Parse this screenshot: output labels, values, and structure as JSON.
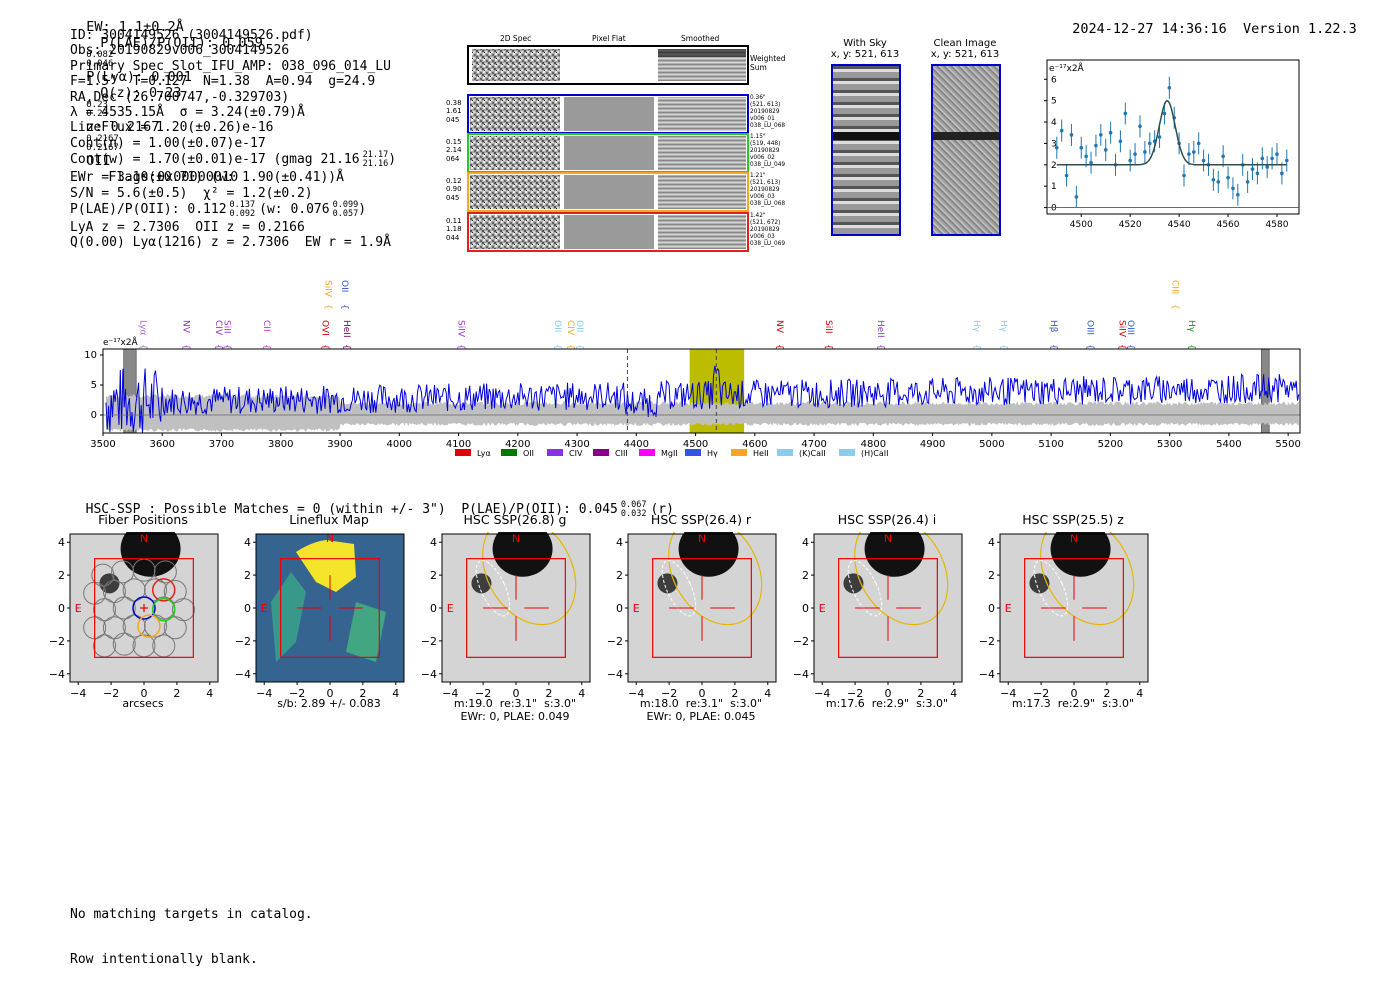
{
  "header": {
    "ew": "EW: 1.1±0.2Å",
    "plae_oii": "P(LAE)/P(OII): 0.059",
    "plae_hi": "0.082",
    "plae_lo": "0.046",
    "plya": "P(Lyα): 0.001",
    "qz": "Q(z): 0.23",
    "qz_hi": "0.23",
    "qz_lo": "0.23",
    "z": "z: 0.2167",
    "z_hi": "0.2167",
    "z_lo": "0.2167",
    "z_line": "OII",
    "flags": "Flags:0x00000010",
    "timestamp": "2024-12-27 14:36:16",
    "version": "Version 1.22.3"
  },
  "info": {
    "lines": [
      "ID: 3004149526 (3004149526.pdf)",
      "Obs: 20190829v006_3004149526",
      "Primary Spec_Slot_IFU_AMP: 038_096_014_LU",
      "F=1.5\"  T=0.127  N=1.38  A=0.94  g=24.9",
      "RA,Dec (26.700747,-0.329703)",
      "λ = 4535.15Å  σ = 3.24(±0.79)Å",
      "LineFlux = 1.20(±0.26)e-16",
      "Cont(n) = 1.00(±0.07)e-17",
      "Cont(w) = 1.70(±0.01)e-17 (gmag 21.16",
      "EWr = 3.10(±0.71) (w: 1.90(±0.41))Å",
      "S/N = 5.6(±0.5)  χ² = 1.2(±0.2)",
      "P(LAE)/P(OII): 0.112",
      "LyA z = 2.7306  OII z = 0.2166",
      "Q(0.00) Lyα(1216) z = 2.7306  EW r = 1.9Å"
    ],
    "gmag_hi": "21.17",
    "gmag_lo": "21.16",
    "plae2_hi": "0.137",
    "plae2_lo": "0.092",
    "plae2_w": "(w: 0.076",
    "plae2_w_hi": "0.099",
    "plae2_w_lo": "0.057",
    "plae2_w_close": ")"
  },
  "cutouts": {
    "col_2d": "2D Spec",
    "col_flat": "Pixel Flat",
    "col_smooth": "Smoothed",
    "weighted": "Weighted\nSum",
    "rows": [
      {
        "left": "0.38\n1.61\n045",
        "right": "0.36\"\n(521, 613)\n20190829\nv006_01\n038_LU_068",
        "color": "#0000cc"
      },
      {
        "left": "0.15\n2.14\n064",
        "right": "1.15\"\n(519, 448)\n20190829\nv006_02\n038_LU_049",
        "color": "#22cc22"
      },
      {
        "left": "0.12\n0.90\n045",
        "right": "1.21\"\n(521, 613)\n20190829\nv006_03\n038_LU_068",
        "color": "#f5a623"
      },
      {
        "left": "0.11\n1.18\n044",
        "right": "1.42\"\n(521, 672)\n20190829\nv006_03\n038_LU_069",
        "color": "#e02020"
      }
    ]
  },
  "sky": {
    "with_sky": "With Sky",
    "with_sky_xy": "x, y: 521, 613",
    "clean": "Clean Image",
    "clean_xy": "x, y: 521, 613"
  },
  "line_fit": {
    "unit": "e⁻¹⁷x2Å",
    "xticks": [
      "4500",
      "4520",
      "4540",
      "4560",
      "4580"
    ],
    "yticks": [
      "0",
      "1",
      "2",
      "3",
      "4",
      "5",
      "6"
    ]
  },
  "chart_data": [
    {
      "type": "scatter",
      "name": "line-fit",
      "ylabel": "e⁻¹⁷x2Å",
      "xlim": [
        4486,
        4589
      ],
      "ylim": [
        -0.3,
        6.9
      ],
      "x": [
        4490,
        4492,
        4494,
        4496,
        4498,
        4500,
        4502,
        4504,
        4506,
        4508,
        4510,
        4512,
        4514,
        4516,
        4518,
        4520,
        4522,
        4524,
        4526,
        4528,
        4530,
        4532,
        4534,
        4536,
        4538,
        4540,
        4542,
        4544,
        4546,
        4548,
        4550,
        4552,
        4554,
        4556,
        4558,
        4560,
        4562,
        4564,
        4566,
        4568,
        4570,
        4572,
        4574,
        4576,
        4578,
        4580,
        4582,
        4584
      ],
      "y": [
        2.8,
        3.6,
        1.5,
        3.4,
        0.5,
        2.8,
        2.4,
        2.1,
        2.9,
        3.4,
        2.7,
        3.5,
        2.0,
        3.1,
        4.4,
        2.2,
        2.5,
        3.8,
        2.6,
        3.0,
        3.1,
        3.3,
        4.4,
        5.6,
        4.2,
        3.0,
        1.5,
        2.5,
        2.6,
        3.0,
        2.2,
        2.0,
        1.3,
        1.2,
        2.4,
        1.4,
        0.9,
        0.6,
        2.0,
        1.2,
        1.8,
        1.6,
        2.3,
        1.9,
        2.3,
        2.5,
        1.6,
        2.2
      ],
      "fit_continuum": 2.0,
      "fit_center": 4535.15,
      "fit_sigma": 3.24,
      "fit_amp": 3.0
    },
    {
      "type": "line",
      "name": "full-spectrum",
      "xlim": [
        3500,
        5520
      ],
      "ylim": [
        -3,
        11
      ],
      "xticks": [
        "3500",
        "3600",
        "3700",
        "3800",
        "3900",
        "4000",
        "4100",
        "4200",
        "4300",
        "4400",
        "4500",
        "4600",
        "4700",
        "4800",
        "4900",
        "5000",
        "5100",
        "5200",
        "5300",
        "5400",
        "5500"
      ],
      "yticks": [
        "0",
        "5",
        "10"
      ],
      "unit": "e⁻¹⁷x2Å",
      "highlight_band": [
        4490,
        4582
      ],
      "dashed_lines": [
        4385,
        4535
      ],
      "masked_regions": [
        [
          3535,
          3556
        ],
        [
          5455,
          5468
        ]
      ],
      "line_labels": [
        {
          "label": "Lyα",
          "x": 3558,
          "color": "#aa66cc",
          "row": 2
        },
        {
          "label": "NV",
          "x": 3631,
          "color": "#9933cc",
          "row": 2
        },
        {
          "label": "CIV",
          "x": 3686,
          "color": "#9933cc",
          "row": 2
        },
        {
          "label": "SiII",
          "x": 3700,
          "color": "#9933cc",
          "row": 2
        },
        {
          "label": "CII",
          "x": 3767,
          "color": "#cc33cc",
          "row": 2
        },
        {
          "label": "OVI",
          "x": 3865,
          "color": "#cc0000",
          "row": 2
        },
        {
          "label": "SiIV",
          "x": 3870,
          "color": "#f5a623",
          "row": 1
        },
        {
          "label": "OII",
          "x": 3898,
          "color": "#3355cc",
          "row": 1
        },
        {
          "label": "HeII",
          "x": 3902,
          "color": "#880066",
          "row": 2
        },
        {
          "label": "SiIV",
          "x": 4095,
          "color": "#9933cc",
          "row": 2
        },
        {
          "label": "OII",
          "x": 4258,
          "color": "#88ccee",
          "row": 2
        },
        {
          "label": "CIV",
          "x": 4280,
          "color": "#f5a623",
          "row": 2
        },
        {
          "label": "OII",
          "x": 4295,
          "color": "#88ccee",
          "row": 2
        },
        {
          "label": "NV",
          "x": 4632,
          "color": "#cc0000",
          "row": 2
        },
        {
          "label": "SiII",
          "x": 4715,
          "color": "#cc0000",
          "row": 2
        },
        {
          "label": "HeII",
          "x": 4803,
          "color": "#9933cc",
          "row": 2
        },
        {
          "label": "Hγ",
          "x": 4965,
          "color": "#88ccee",
          "row": 2
        },
        {
          "label": "Hγ",
          "x": 5010,
          "color": "#88ccee",
          "row": 2
        },
        {
          "label": "Hβ",
          "x": 5095,
          "color": "#3355cc",
          "row": 2
        },
        {
          "label": "OIII",
          "x": 5156,
          "color": "#3355cc",
          "row": 2
        },
        {
          "label": "SiIV",
          "x": 5210,
          "color": "#cc0000",
          "row": 2
        },
        {
          "label": "OIII",
          "x": 5225,
          "color": "#3355cc",
          "row": 2
        },
        {
          "label": "CIII",
          "x": 5300,
          "color": "#f5a623",
          "row": 1
        },
        {
          "label": "Hγ",
          "x": 5328,
          "color": "#119911",
          "row": 2
        }
      ],
      "legend": [
        {
          "label": "Lyα",
          "color": "#e00000"
        },
        {
          "label": "OII",
          "color": "#007700"
        },
        {
          "label": "CIV",
          "color": "#8833dd"
        },
        {
          "label": "CIII",
          "color": "#880088"
        },
        {
          "label": "MgII",
          "color": "#ff00ff"
        },
        {
          "label": "Hγ",
          "color": "#3355dd"
        },
        {
          "label": "HeII",
          "color": "#f5a623"
        },
        {
          "label": "(K)CaII",
          "color": "#88ccee"
        },
        {
          "label": "(H)CaII",
          "color": "#88ccee"
        }
      ]
    }
  ],
  "hsc": {
    "title": "HSC-SSP : Possible Matches = 0 (within +/- 3\")  P(LAE)/P(OII): 0.045",
    "title_hi": "0.067",
    "title_lo": "0.032",
    "title_band": "(r)"
  },
  "stamps": [
    {
      "title": "Fiber Positions",
      "sub1": "arcsecs",
      "sub2": ""
    },
    {
      "title": "Lineflux Map",
      "sub1": "s/b: 2.89 +/- 0.083",
      "sub2": ""
    },
    {
      "title": "HSC SSP(26.8) g",
      "sub1": "m:19.0  re:3.1\"  s:3.0\"",
      "sub2": "EWr: 0, PLAE: 0.049"
    },
    {
      "title": "HSC SSP(26.4) r",
      "sub1": "m:18.0  re:3.1\"  s:3.0\"",
      "sub2": "EWr: 0, PLAE: 0.045"
    },
    {
      "title": "HSC SSP(26.4) i",
      "sub1": "m:17.6  re:2.9\"  s:3.0\"",
      "sub2": ""
    },
    {
      "title": "HSC SSP(25.5) z",
      "sub1": "m:17.3  re:2.9\"  s:3.0\"",
      "sub2": ""
    }
  ],
  "stamp_axes": {
    "xticks": [
      "−4",
      "−2",
      "0",
      "2",
      "4"
    ],
    "yticks": [
      "4",
      "2",
      "0",
      "−2",
      "−4"
    ],
    "north": "N",
    "east": "E"
  },
  "footer": {
    "line1": "No matching targets in catalog.",
    "line2": "Row intentionally blank."
  }
}
